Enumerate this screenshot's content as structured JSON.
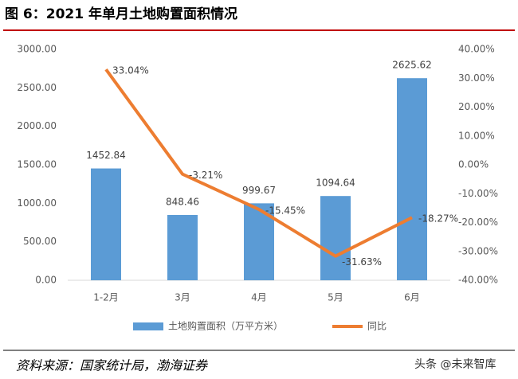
{
  "header": {
    "title": "图 6：2021 年单月土地购置面积情况"
  },
  "chart_data": {
    "type": "bar",
    "categories": [
      "1-2月",
      "3月",
      "4月",
      "5月",
      "6月"
    ],
    "series": [
      {
        "name": "土地购置面积（万平方米）",
        "type": "bar",
        "color": "#5b9bd5",
        "values": [
          1452.84,
          848.46,
          999.67,
          1094.64,
          2625.62
        ]
      },
      {
        "name": "同比",
        "type": "line",
        "axis": "y2",
        "color": "#ed7d31",
        "values": [
          33.04,
          -3.21,
          -15.45,
          -31.63,
          -18.27
        ],
        "value_labels": [
          "33.04%",
          "-3.21%",
          "-15.45%",
          "-31.63%",
          "-18.27%"
        ]
      }
    ],
    "ylim": [
      0,
      3000
    ],
    "yticks": [
      {
        "value": 0,
        "label": "0.00"
      },
      {
        "value": 500,
        "label": "500.00"
      },
      {
        "value": 1000,
        "label": "1000.00"
      },
      {
        "value": 1500,
        "label": "1500.00"
      },
      {
        "value": 2000,
        "label": "2000.00"
      },
      {
        "value": 2500,
        "label": "2500.00"
      },
      {
        "value": 3000,
        "label": "3000.00"
      }
    ],
    "y2lim": [
      -40,
      40
    ],
    "y2ticks": [
      {
        "value": -40,
        "label": "-40.00%"
      },
      {
        "value": -30,
        "label": "-30.00%"
      },
      {
        "value": -20,
        "label": "-20.00%"
      },
      {
        "value": -10,
        "label": "-10.00%"
      },
      {
        "value": 0,
        "label": "0.00%"
      },
      {
        "value": 10,
        "label": "10.00%"
      },
      {
        "value": 20,
        "label": "20.00%"
      },
      {
        "value": 30,
        "label": "30.00%"
      },
      {
        "value": 40,
        "label": "40.00%"
      }
    ],
    "legend": "bottom"
  },
  "footer": {
    "source": "资料来源：国家统计局，渤海证券",
    "watermark": "头条 @未来智库"
  }
}
